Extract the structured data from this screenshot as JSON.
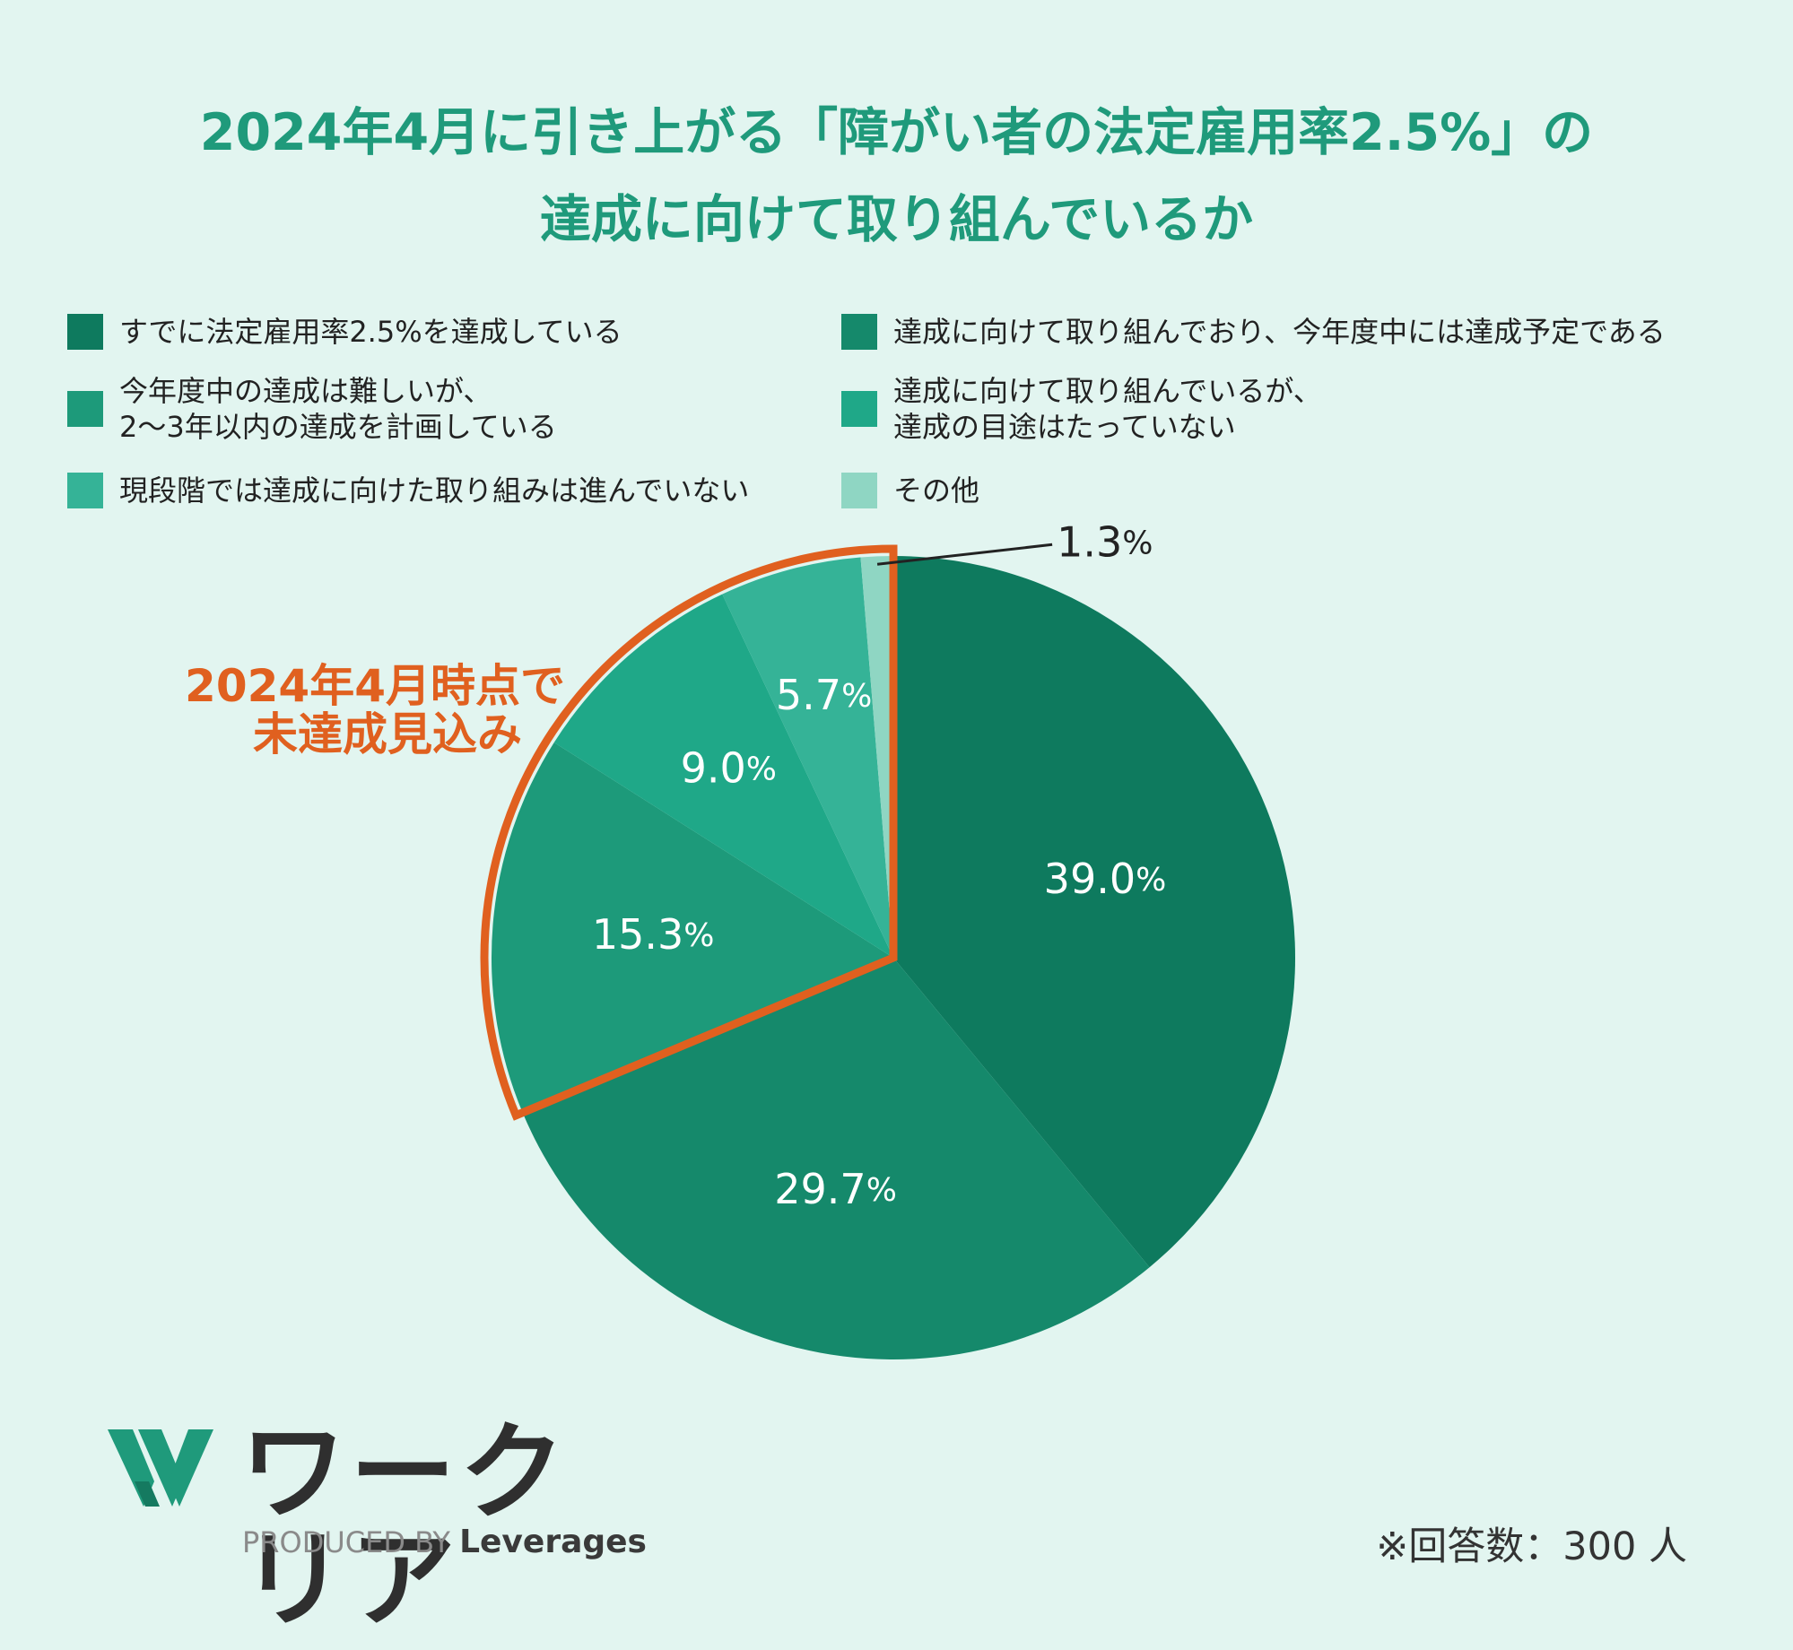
{
  "title": {
    "line1": "2024年4月に引き上がる「障がい者の法定雇用率2.5%」の",
    "line2": "達成に向けて取り組んでいるか"
  },
  "chart_data": {
    "type": "pie",
    "title": "2024年4月に引き上がる「障がい者の法定雇用率2.5%」の達成に向けて取り組んでいるか",
    "slices": [
      {
        "label": "すでに法定雇用率2.5%を達成している",
        "value": 39.0,
        "display": "39.0",
        "color": "#0e7a5e"
      },
      {
        "label": "達成に向けて取り組んでおり、今年度中には達成予定である",
        "value": 29.7,
        "display": "29.7",
        "color": "#15896b"
      },
      {
        "label": "今年度中の達成は難しいが、\n2〜3年以内の達成を計画している",
        "value": 15.3,
        "display": "15.3",
        "color": "#1d9a7a"
      },
      {
        "label": "達成に向けて取り組んでいるが、\n達成の目途はたっていない",
        "value": 9.0,
        "display": "9.0",
        "color": "#1fa888"
      },
      {
        "label": "現段階では達成に向けた取り組みは進んでいない",
        "value": 5.7,
        "display": "5.7",
        "color": "#35b397"
      },
      {
        "label": "その他",
        "value": 1.3,
        "display": "1.3",
        "color": "#8fd6c3"
      }
    ],
    "percent_sign": "%",
    "highlight": {
      "label_line1": "2024年4月時点で",
      "label_line2": "未達成見込み",
      "color": "#e0601f"
    }
  },
  "legend": {
    "items": [
      {
        "label": "すでに法定雇用率2.5%を達成している",
        "color": "#0e7a5e"
      },
      {
        "label": "達成に向けて取り組んでおり、今年度中には達成予定である",
        "color": "#15896b"
      },
      {
        "label": "今年度中の達成は難しいが、\n2〜3年以内の達成を計画している",
        "color": "#1d9a7a"
      },
      {
        "label": "達成に向けて取り組んでいるが、\n達成の目途はたっていない",
        "color": "#1fa888"
      },
      {
        "label": "現段階では達成に向けた取り組みは進んでいない",
        "color": "#35b397"
      },
      {
        "label": "その他",
        "color": "#8fd6c3"
      }
    ]
  },
  "logo": {
    "name": "ワークリア",
    "produced_by": "PRODUCED BY",
    "brand": "Leverages",
    "icon": "workclear-w-icon",
    "color": "#1f9a7b"
  },
  "footer": {
    "respondents": "※回答数：300 人"
  }
}
